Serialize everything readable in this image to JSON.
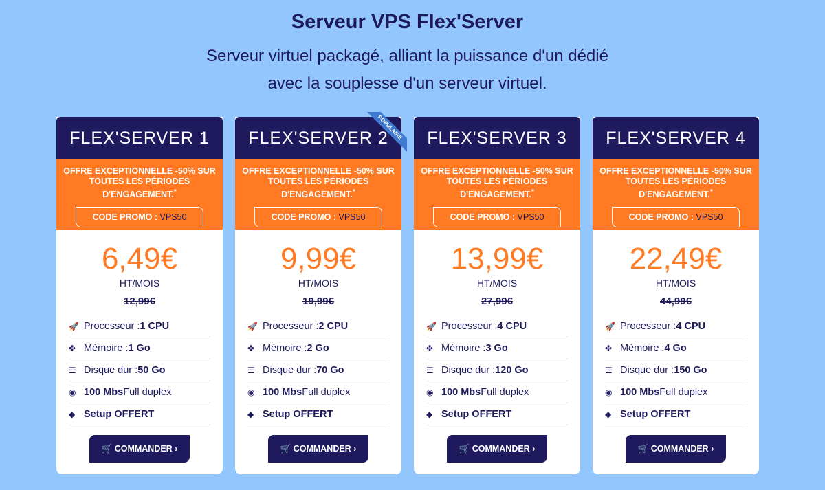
{
  "header": {
    "title": "Serveur VPS Flex'Server",
    "subtitle": "Serveur virtuel packagé, alliant la puissance d'un dédié avec la souplesse d'un serveur virtuel."
  },
  "colors": {
    "background": "#93c6fc",
    "navy": "#1f1a5e",
    "orange": "#ff7a22",
    "ribbon": "#3e7ad0"
  },
  "common": {
    "offer": "OFFRE EXCEPTIONNELLE -50% SUR TOUTES LES PÉRIODES D'ENGAGEMENT.",
    "asterisk": "*",
    "code_label": "CODE PROMO : ",
    "code_value": "VPS50",
    "unit": "HT/MOIS",
    "cta": "COMMANDER",
    "ribbon": "POPULAIRE",
    "cpu_label": "Processeur : ",
    "mem_label": "Mémoire : ",
    "disk_label": "Disque dur : ",
    "net_value": "100 Mbs",
    "net_label": " Full duplex",
    "setup": "Setup OFFERT"
  },
  "plans": [
    {
      "name": "FLEX'SERVER 1",
      "price": "6,49€",
      "old_price": "12,99€",
      "cpu": "1 CPU",
      "mem": "1 Go",
      "disk": "50 Go"
    },
    {
      "name": "FLEX'SERVER 2",
      "price": "9,99€",
      "old_price": "19,99€",
      "cpu": "2 CPU",
      "mem": "2 Go",
      "disk": "70 Go",
      "popular": true
    },
    {
      "name": "FLEX'SERVER 3",
      "price": "13,99€",
      "old_price": "27,99€",
      "cpu": "4 CPU",
      "mem": "3 Go",
      "disk": "120 Go"
    },
    {
      "name": "FLEX'SERVER 4",
      "price": "22,49€",
      "old_price": "44,99€",
      "cpu": "4 CPU",
      "mem": "4 Go",
      "disk": "150 Go"
    }
  ]
}
